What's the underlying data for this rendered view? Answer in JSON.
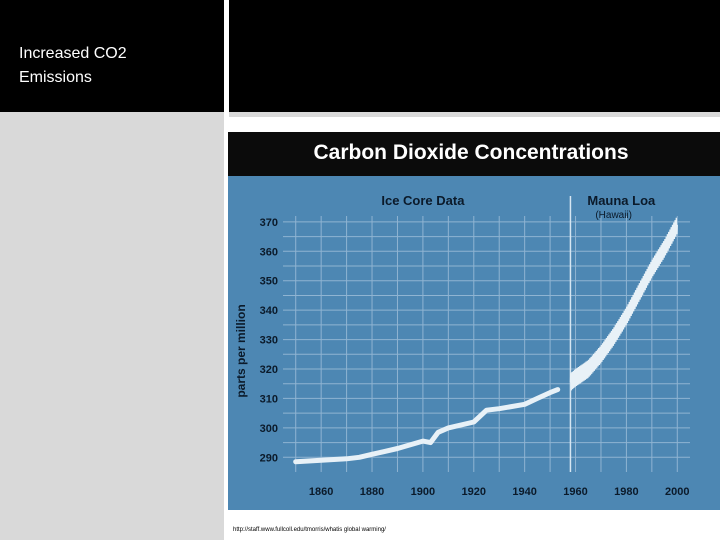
{
  "slide": {
    "title": "Increased CO2\nEmissions",
    "source": "http://staff.www.fullcoll.edu/tmorris/whatis global warming/"
  },
  "chart_data": {
    "type": "line",
    "title": "Carbon Dioxide Concentrations",
    "ylabel": "parts per million",
    "xlabel": "",
    "xlim": [
      1845,
      2005
    ],
    "ylim": [
      285,
      372
    ],
    "x_ticks": [
      1860,
      1880,
      1900,
      1920,
      1940,
      1960,
      1980,
      2000
    ],
    "y_ticks": [
      290,
      300,
      310,
      320,
      330,
      340,
      350,
      360,
      370
    ],
    "grid": true,
    "divider_year": 1958,
    "regions": [
      {
        "label": "Ice Core Data",
        "sublabel": ""
      },
      {
        "label": "Mauna Loa",
        "sublabel": "(Hawaii)"
      }
    ],
    "series": [
      {
        "name": "Ice Core Data",
        "x": [
          1850,
          1860,
          1870,
          1875,
          1880,
          1890,
          1900,
          1903,
          1906,
          1910,
          1920,
          1925,
          1930,
          1940,
          1945,
          1950,
          1953
        ],
        "y": [
          288.5,
          289,
          289.5,
          290,
          291,
          293,
          295.5,
          295,
          298.5,
          300,
          302,
          306,
          306.5,
          308,
          310,
          312,
          313
        ]
      },
      {
        "name": "Mauna Loa",
        "x": [
          1958,
          1960,
          1965,
          1970,
          1975,
          1980,
          1985,
          1990,
          1995,
          2000
        ],
        "y": [
          315.5,
          317,
          320,
          325,
          331,
          338,
          346,
          354,
          361,
          369
        ],
        "seasonal_amplitude": 3
      }
    ],
    "colors": {
      "title_band": "#0b0b0b",
      "plot_bg": "#4d87b3",
      "grid": "#8fb4d2",
      "line": "#e8f1f7"
    }
  }
}
